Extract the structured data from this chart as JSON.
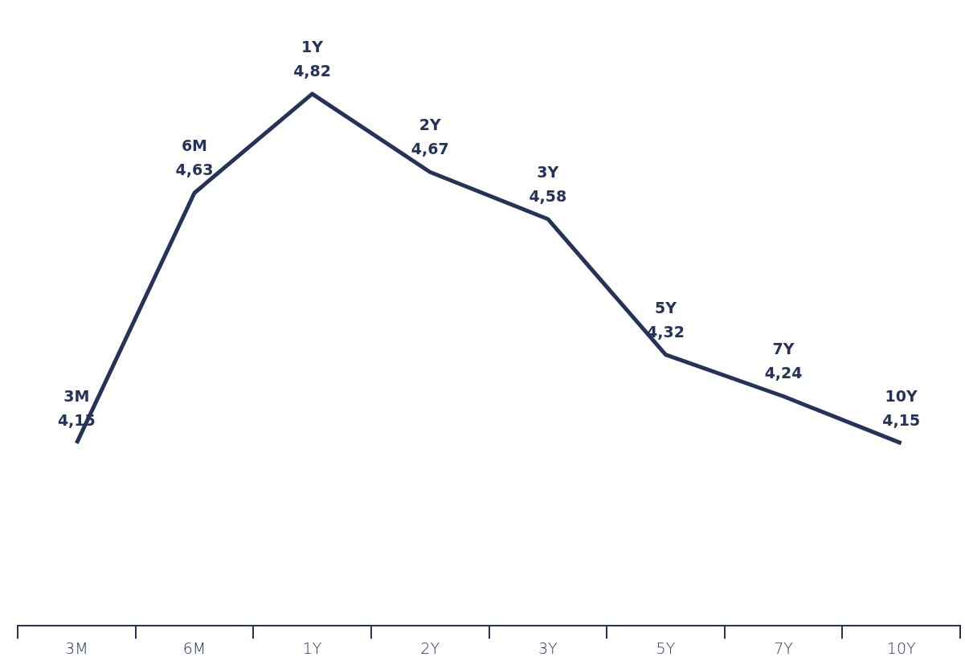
{
  "chart_data": {
    "type": "line",
    "categories": [
      "3M",
      "6M",
      "1Y",
      "2Y",
      "3Y",
      "5Y",
      "7Y",
      "10Y"
    ],
    "series": [
      {
        "color": "#253358",
        "values": [
          4.15,
          4.63,
          4.82,
          4.67,
          4.58,
          4.32,
          4.24,
          4.15
        ],
        "value_labels": [
          "4,15",
          "4,63",
          "4,82",
          "4,67",
          "4,58",
          "4,32",
          "4,24",
          "4,15"
        ]
      }
    ],
    "tick_labels": "x",
    "grid": false,
    "legend": false,
    "marker": "none",
    "line_style": "solid"
  }
}
